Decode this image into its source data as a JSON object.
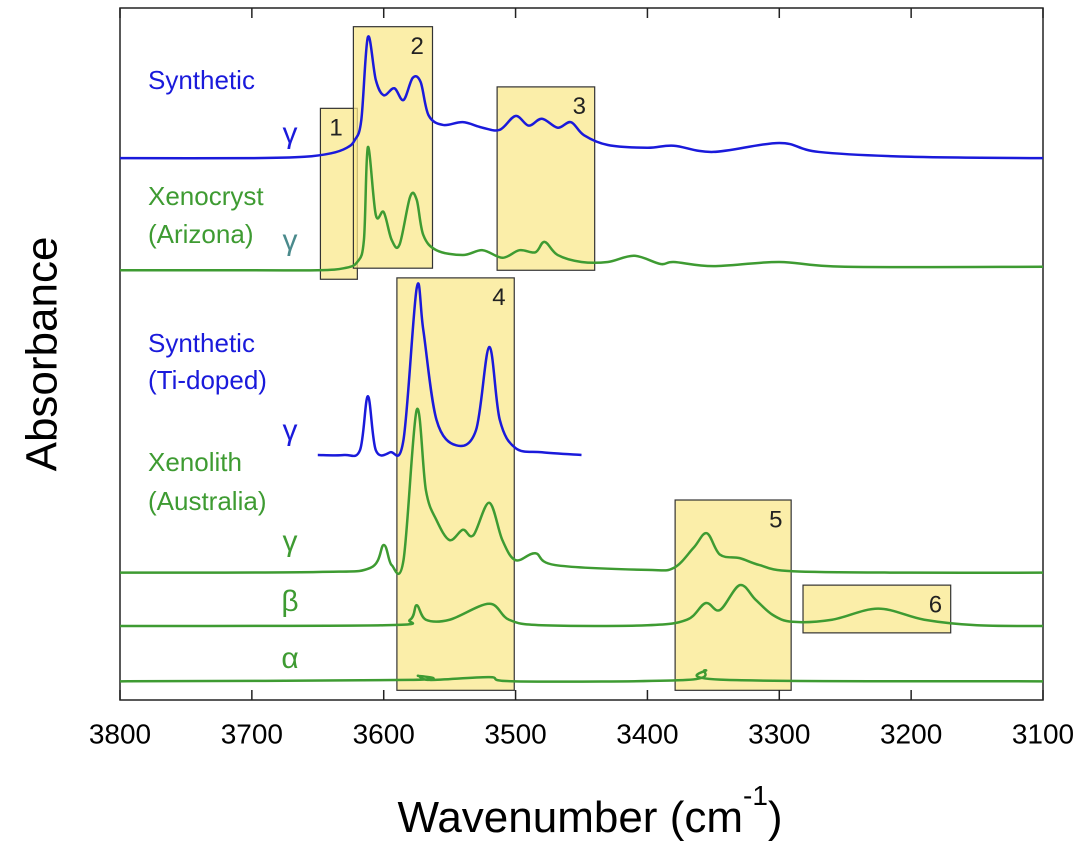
{
  "chart_data": {
    "type": "line",
    "ylabel": "Absorbance",
    "xlabel": "Wavenumber (cm",
    "xlabel_sup": "-1",
    "xlabel_end": ")",
    "xlim": [
      3800,
      3100
    ],
    "xticks": [
      3800,
      3700,
      3600,
      3500,
      3400,
      3300,
      3200,
      3100
    ],
    "ylim": [
      0,
      100
    ],
    "annotations": [
      {
        "text": "Synthetic",
        "color": "#1a1adb"
      },
      {
        "text": "γ",
        "color": "#1a1adb"
      },
      {
        "text": "Xenocryst",
        "color": "#3e9b32"
      },
      {
        "text": "(Arizona)",
        "color": "#3e9b32"
      },
      {
        "text": "γ",
        "color": "#4a8a8c"
      },
      {
        "text": "Synthetic",
        "color": "#1a1adb"
      },
      {
        "text": "(Ti-doped)",
        "color": "#1a1adb"
      },
      {
        "text": "γ",
        "color": "#1a1adb"
      },
      {
        "text": "Xenolith",
        "color": "#3e9b32"
      },
      {
        "text": "(Australia)",
        "color": "#3e9b32"
      },
      {
        "text": "γ",
        "color": "#3e9b32"
      },
      {
        "text": "β",
        "color": "#3e9b32"
      },
      {
        "text": "α",
        "color": "#3e9b32"
      }
    ],
    "regions": [
      {
        "label": "1",
        "xrange": [
          3648,
          3620
        ],
        "yrange": [
          60.8,
          85.5
        ]
      },
      {
        "label": "2",
        "xrange": [
          3623,
          3563
        ],
        "yrange": [
          62.4,
          97.3
        ]
      },
      {
        "label": "3",
        "xrange": [
          3514,
          3440
        ],
        "yrange": [
          62.1,
          88.6
        ]
      },
      {
        "label": "4",
        "xrange": [
          3590,
          3501
        ],
        "yrange": [
          1.4,
          61
        ]
      },
      {
        "label": "5",
        "xrange": [
          3379,
          3291
        ],
        "yrange": [
          1.4,
          28.9
        ]
      },
      {
        "label": "6",
        "xrange": [
          3282,
          3170
        ],
        "yrange": [
          9.7,
          16.6
        ]
      }
    ],
    "region_color": "#f9e88c",
    "series": [
      {
        "color": "#1a1adb",
        "x": [
          3800,
          3700,
          3660,
          3640,
          3628,
          3622,
          3617,
          3612,
          3606,
          3600,
          3592,
          3585,
          3578,
          3572,
          3566,
          3555,
          3540,
          3525,
          3512,
          3500,
          3490,
          3480,
          3468,
          3458,
          3448,
          3430,
          3400,
          3380,
          3350,
          3300,
          3270,
          3200,
          3100
        ],
        "values": [
          78.3,
          78.3,
          78.5,
          79.0,
          79.8,
          80.9,
          83.8,
          95.8,
          89.6,
          87.4,
          88.4,
          86.7,
          89.9,
          89.3,
          84.5,
          83.1,
          83.5,
          82.7,
          82.4,
          84.4,
          83.0,
          84.0,
          82.7,
          83.5,
          81.6,
          80.2,
          79.8,
          80.1,
          79.2,
          80.5,
          79.2,
          78.5,
          78.3
        ]
      },
      {
        "color": "#3e9b32",
        "x": [
          3800,
          3700,
          3650,
          3630,
          3620,
          3615,
          3612,
          3606,
          3600,
          3594,
          3588,
          3580,
          3575,
          3570,
          3560,
          3540,
          3525,
          3510,
          3497,
          3485,
          3478,
          3468,
          3450,
          3430,
          3410,
          3390,
          3380,
          3350,
          3300,
          3250,
          3100
        ],
        "values": [
          62.1,
          62.1,
          62.1,
          62.4,
          63.3,
          66.5,
          79.9,
          70.1,
          70.5,
          66.5,
          65.8,
          72.7,
          72.3,
          67.2,
          65.0,
          64.3,
          65.0,
          63.9,
          65.0,
          64.7,
          66.2,
          64.3,
          63.3,
          63.3,
          64.2,
          63.0,
          63.3,
          62.7,
          63.3,
          62.6,
          62.6
        ]
      },
      {
        "color": "#1a1adb",
        "x": [
          3650,
          3630,
          3618,
          3612,
          3606,
          3595,
          3585,
          3575,
          3570,
          3560,
          3545,
          3530,
          3520,
          3512,
          3500,
          3480,
          3450
        ],
        "values": [
          35.4,
          35.4,
          36.1,
          43.9,
          36.1,
          35.8,
          37.6,
          59.5,
          53.5,
          40.5,
          36.8,
          39.0,
          51.0,
          40.5,
          36.4,
          35.8,
          35.4
        ]
      },
      {
        "color": "#3e9b32",
        "x": [
          3800,
          3650,
          3610,
          3600,
          3594,
          3585,
          3575,
          3568,
          3560,
          3550,
          3540,
          3532,
          3520,
          3510,
          3500,
          3485,
          3470,
          3400,
          3380,
          3365,
          3355,
          3345,
          3330,
          3315,
          3290,
          3200,
          3100
        ],
        "values": [
          18.4,
          18.5,
          19.1,
          22.4,
          19.5,
          20.2,
          41.9,
          30.3,
          26.0,
          23.1,
          24.6,
          23.8,
          28.5,
          23.1,
          20.2,
          21.2,
          19.5,
          18.8,
          19.1,
          22.0,
          24.1,
          21.0,
          20.5,
          19.5,
          18.6,
          18.4,
          18.4
        ]
      },
      {
        "color": "#3e9b32",
        "x": [
          3800,
          3600,
          3580,
          3575,
          3568,
          3550,
          3520,
          3505,
          3480,
          3400,
          3370,
          3356,
          3345,
          3330,
          3318,
          3305,
          3290,
          3260,
          3225,
          3190,
          3150,
          3100
        ],
        "values": [
          10.7,
          10.8,
          11.6,
          13.7,
          11.6,
          11.6,
          13.9,
          11.6,
          10.8,
          10.8,
          11.6,
          14.0,
          13.0,
          16.6,
          14.5,
          12.3,
          11.3,
          11.6,
          13.2,
          11.6,
          10.8,
          10.7
        ]
      },
      {
        "color": "#3e9b32",
        "x": [
          3800,
          3580,
          3574,
          3565,
          3520,
          3500,
          3370,
          3356,
          3340,
          3100
        ],
        "values": [
          2.7,
          2.9,
          3.5,
          2.9,
          3.3,
          2.7,
          2.9,
          4.3,
          2.9,
          2.7
        ]
      }
    ]
  }
}
